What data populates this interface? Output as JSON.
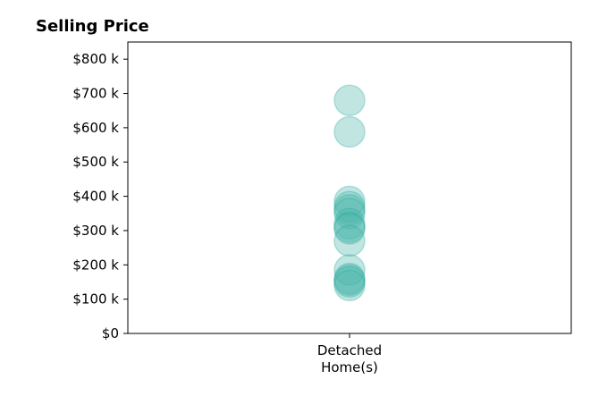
{
  "chart_data": {
    "type": "scatter",
    "title": "Selling Price",
    "xlabel": "",
    "ylabel": "",
    "categories": [
      "Detached\nHome(s)"
    ],
    "series": [
      {
        "category": "Detached\nHome(s)",
        "values": [
          680000,
          588000,
          385000,
          370000,
          360000,
          350000,
          320000,
          310000,
          305000,
          270000,
          185000,
          160000,
          155000,
          150000,
          140000
        ]
      }
    ],
    "y_tick_values": [
      0,
      100000,
      200000,
      300000,
      400000,
      500000,
      600000,
      700000,
      800000
    ],
    "y_tick_labels": [
      "$0",
      "$100 k",
      "$200 k",
      "$300 k",
      "$400 k",
      "$500 k",
      "$600 k",
      "$700 k",
      "$800 k"
    ],
    "ylim": [
      0,
      850000
    ],
    "grid": false,
    "marker_color": "#4db6ac",
    "marker_edge_color": "#26a69a"
  }
}
